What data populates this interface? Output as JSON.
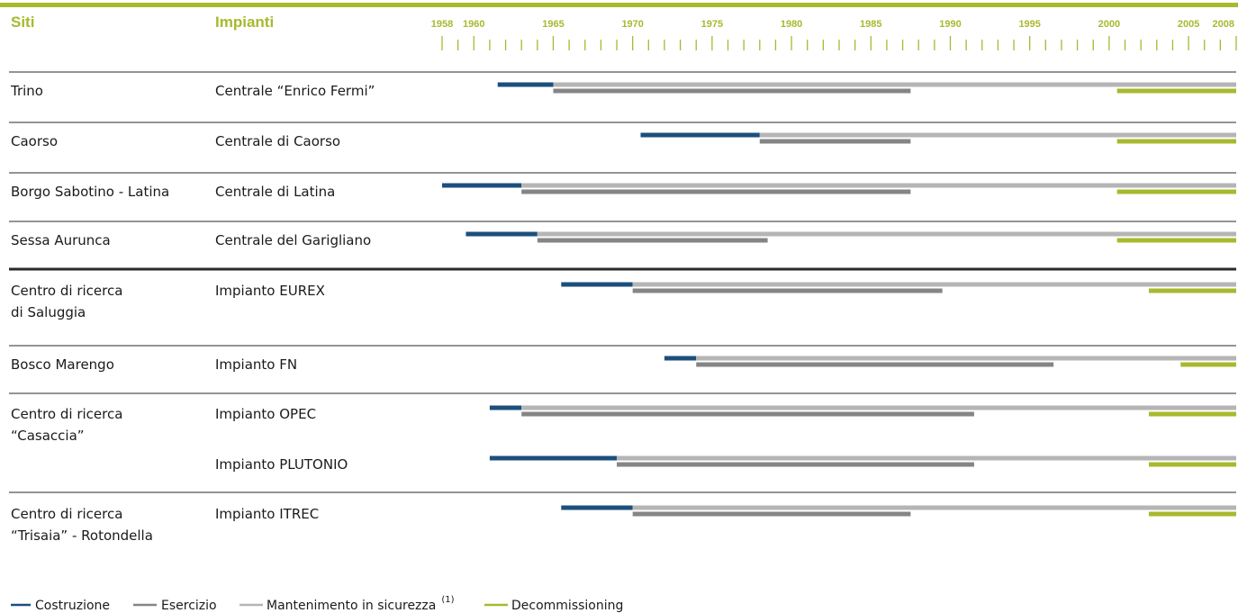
{
  "colors": {
    "accent": "#a8b92e",
    "costruzione": "#1c4f7c",
    "esercizio": "#858585",
    "mantenimento": "#b5b5b5",
    "decommissioning": "#a8b92e",
    "separator": "#2a2a2a"
  },
  "headers": {
    "siti": "Siti",
    "impianti": "Impianti"
  },
  "legend": {
    "costruzione": "Costruzione",
    "esercizio": "Esercizio",
    "mantenimento": "Mantenimento in sicurezza",
    "mantenimento_note": "(1)",
    "decommissioning": "Decommissioning"
  },
  "chart_data": {
    "type": "gantt",
    "x_axis": {
      "range": [
        1958,
        2008
      ],
      "tick_labels": [
        "1958",
        "1960",
        "1965",
        "1970",
        "1975",
        "1980",
        "1985",
        "1990",
        "1995",
        "2000",
        "2005",
        "2008"
      ]
    },
    "rows": [
      {
        "sito": [
          "Trino"
        ],
        "impianto": "Centrale “Enrico Fermi”",
        "costruzione": [
          1961.5,
          1965
        ],
        "mantenimento": [
          1965,
          2008
        ],
        "esercizio": [
          1965,
          1987.5
        ],
        "decommissioning": [
          2000.5,
          2008
        ]
      },
      {
        "sito": [
          "Caorso"
        ],
        "impianto": "Centrale di Caorso",
        "costruzione": [
          1970.5,
          1978
        ],
        "mantenimento": [
          1978,
          2008
        ],
        "esercizio": [
          1978,
          1987.5
        ],
        "decommissioning": [
          2000.5,
          2008
        ]
      },
      {
        "sito": [
          "Borgo Sabotino - Latina"
        ],
        "impianto": "Centrale di Latina",
        "costruzione": [
          1958,
          1963
        ],
        "mantenimento": [
          1963,
          2008
        ],
        "esercizio": [
          1963,
          1987.5
        ],
        "decommissioning": [
          2000.5,
          2008
        ]
      },
      {
        "sito": [
          "Sessa Aurunca"
        ],
        "impianto": "Centrale del Garigliano",
        "costruzione": [
          1959.5,
          1964
        ],
        "mantenimento": [
          1964,
          2008
        ],
        "esercizio": [
          1964,
          1978.5
        ],
        "decommissioning": [
          2000.5,
          2008
        ]
      },
      {
        "sito": [
          "Centro di ricerca",
          "di Saluggia"
        ],
        "impianto": "Impianto EUREX",
        "costruzione": [
          1965.5,
          1970
        ],
        "mantenimento": [
          1970,
          2008
        ],
        "esercizio": [
          1970,
          1989.5
        ],
        "decommissioning": [
          2002.5,
          2008
        ]
      },
      {
        "sito": [
          "Bosco Marengo"
        ],
        "impianto": "Impianto FN",
        "costruzione": [
          1972,
          1974
        ],
        "mantenimento": [
          1974,
          2008
        ],
        "esercizio": [
          1974,
          1996.5
        ],
        "decommissioning": [
          2004.5,
          2008
        ]
      },
      {
        "sito": [
          "Centro di ricerca",
          "“Casaccia”"
        ],
        "impianto": "Impianto OPEC",
        "costruzione": [
          1961,
          1963
        ],
        "mantenimento": [
          1963,
          2008
        ],
        "esercizio": [
          1963,
          1991.5
        ],
        "decommissioning": [
          2002.5,
          2008
        ]
      },
      {
        "sito": [],
        "impianto": "Impianto PLUTONIO",
        "costruzione": [
          1961,
          1969
        ],
        "mantenimento": [
          1969,
          2008
        ],
        "esercizio": [
          1969,
          1991.5
        ],
        "decommissioning": [
          2002.5,
          2008
        ]
      },
      {
        "sito": [
          "Centro di ricerca",
          "“Trisaia” - Rotondella"
        ],
        "impianto": "Impianto ITREC",
        "costruzione": [
          1965.5,
          1970
        ],
        "mantenimento": [
          1970,
          2008
        ],
        "esercizio": [
          1970,
          1987.5
        ],
        "decommissioning": [
          2002.5,
          2008
        ]
      }
    ]
  }
}
